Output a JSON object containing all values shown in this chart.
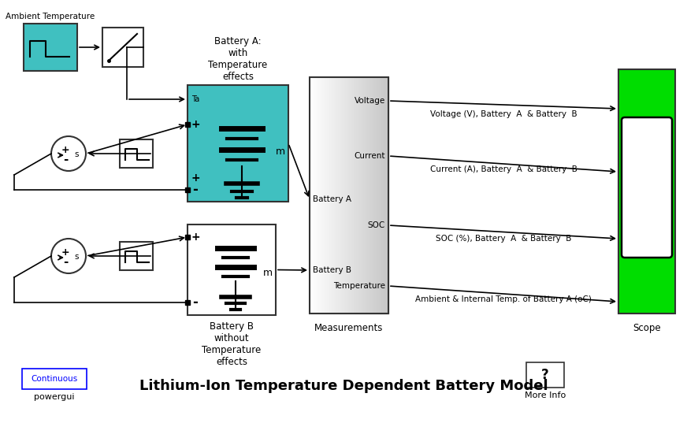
{
  "title": "Lithium-Ion Temperature Dependent Battery Model",
  "teal_color": "#40C0C0",
  "green_color": "#00DD00",
  "white_color": "#ffffff",
  "block_outline": "#333333",
  "blue_outline": "#0000FF",
  "ambient_temp_label": "Ambient Temperature",
  "battery_a_label": "Battery A:\nwith\nTemperature\neffects",
  "battery_b_label": "Battery B\nwithout\nTemperature\neffects",
  "measurements_label": "Measurements",
  "scope_label": "Scope",
  "continuous_label": "Continuous",
  "powergui_label": "powergui",
  "more_info_label": "More Info",
  "port_labels_meas": [
    "Voltage",
    "Current",
    "SOC",
    "Temperature"
  ],
  "signal_labels": [
    "Voltage (V), Battery  A  & Battery  B",
    "Current (A), Battery  A  & Battery  B",
    "SOC (%), Battery  A  & Battery  B",
    "Ambient & Internal Temp. of Battery A (oC)"
  ],
  "input_labels_meas": [
    "Battery A",
    "Battery B"
  ],
  "font_family": "DejaVu Sans"
}
